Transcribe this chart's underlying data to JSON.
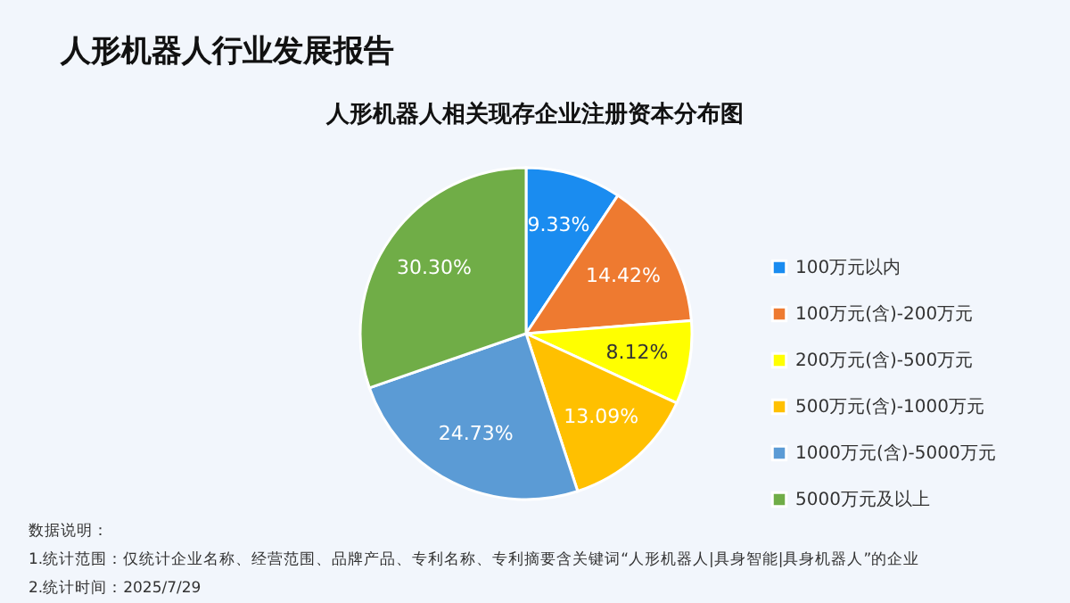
{
  "chart_data": {
    "type": "pie",
    "title": "人形机器人行业发展报告",
    "subtitle": "人形机器人相关现存企业注册资本分布图",
    "categories": [
      "100万元以内",
      "100万元(含)-200万元",
      "200万元(含)-500万元",
      "500万元(含)-1000万元",
      "1000万元(含)-5000万元",
      "5000万元及以上"
    ],
    "values": [
      9.33,
      14.42,
      8.12,
      13.09,
      24.73,
      30.3
    ],
    "value_labels": [
      "9.33%",
      "14.42%",
      "8.12%",
      "13.09%",
      "24.73%",
      "30.30%"
    ],
    "colors": [
      "#1a8cf0",
      "#ee7a30",
      "#ffff00",
      "#ffc000",
      "#5b9bd5",
      "#70ad47"
    ],
    "legend": "right",
    "annotations": [
      "数据说明：",
      "1.统计范围：仅统计企业名称、经营范围、品牌产品、专利名称、专利摘要含关键词“人形机器人|具身智能|具身机器人”的企业",
      "2.统计时间：2025/7/29"
    ]
  }
}
